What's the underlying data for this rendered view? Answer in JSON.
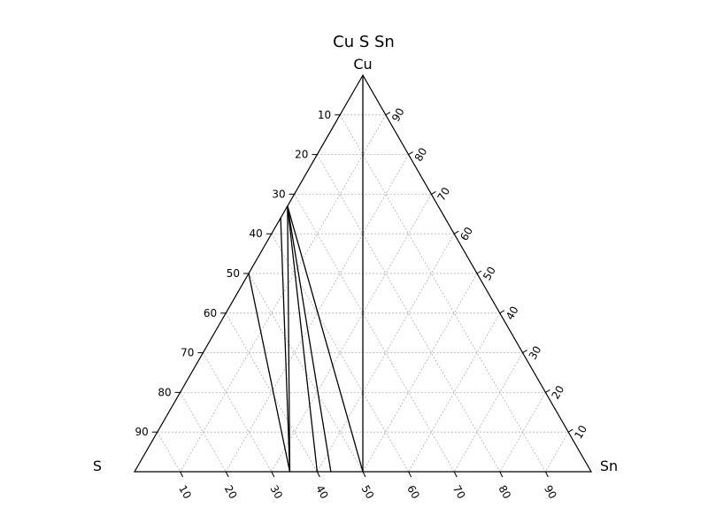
{
  "chart_data": {
    "type": "ternary",
    "title": "Cu S Sn",
    "vertices": {
      "top": "Cu",
      "left": "S",
      "right": "Sn"
    },
    "ticks": {
      "left_axis": [
        "10",
        "20",
        "30",
        "40",
        "50",
        "60",
        "70",
        "80",
        "90"
      ],
      "right_axis": [
        "90",
        "80",
        "70",
        "60",
        "50",
        "40",
        "30",
        "20",
        "10"
      ],
      "bottom_axis": [
        "10",
        "20",
        "30",
        "40",
        "50",
        "60",
        "70",
        "80",
        "90"
      ]
    },
    "grid": true,
    "tie_lines": [
      {
        "from": {
          "Cu": 50,
          "S": 50,
          "Sn": 0
        },
        "to": {
          "Cu": 0,
          "S": 66,
          "Sn": 34
        }
      },
      {
        "from": {
          "Cu": 67,
          "S": 33,
          "Sn": 0
        },
        "to": {
          "Cu": 0,
          "S": 66,
          "Sn": 34
        }
      },
      {
        "from": {
          "Cu": 67,
          "S": 33,
          "Sn": 0
        },
        "to": {
          "Cu": 0,
          "S": 60,
          "Sn": 40
        }
      },
      {
        "from": {
          "Cu": 67,
          "S": 33,
          "Sn": 0
        },
        "to": {
          "Cu": 0,
          "S": 57,
          "Sn": 43
        }
      },
      {
        "from": {
          "Cu": 67,
          "S": 33,
          "Sn": 0
        },
        "to": {
          "Cu": 0,
          "S": 50,
          "Sn": 50
        }
      },
      {
        "from": {
          "Cu": 100,
          "S": 0,
          "Sn": 0
        },
        "to": {
          "Cu": 0,
          "S": 50,
          "Sn": 50
        }
      },
      {
        "from": {
          "Cu": 64,
          "S": 36,
          "Sn": 0
        },
        "to": {
          "Cu": 0,
          "S": 66,
          "Sn": 34
        }
      }
    ]
  }
}
